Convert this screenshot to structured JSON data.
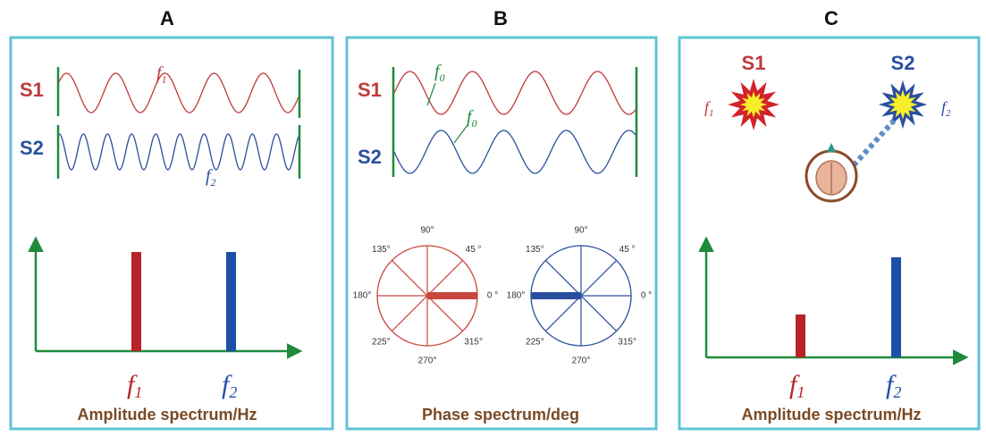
{
  "panels": [
    {
      "label": "A",
      "signals": [
        {
          "name": "S1",
          "freq": {
            "base": "f",
            "sub": "1"
          }
        },
        {
          "name": "S2",
          "freq": {
            "base": "f",
            "sub": "2"
          }
        }
      ],
      "spectrum_ticks": [
        {
          "base": "f",
          "sub": "1"
        },
        {
          "base": "f",
          "sub": "2"
        }
      ],
      "caption": "Amplitude spectrum/Hz"
    },
    {
      "label": "B",
      "signals": [
        {
          "name": "S1",
          "freq": {
            "base": "f",
            "sub": "0"
          }
        },
        {
          "name": "S2",
          "freq": {
            "base": "f",
            "sub": "0"
          }
        }
      ],
      "phase_labels": [
        "0 °",
        "45 °",
        "90°",
        "135°",
        "180°",
        "225°",
        "270°",
        "315°"
      ],
      "caption": "Phase spectrum/deg"
    },
    {
      "label": "C",
      "sources": [
        {
          "name": "S1",
          "freq": {
            "base": "f",
            "sub": "1"
          }
        },
        {
          "name": "S2",
          "freq": {
            "base": "f",
            "sub": "2"
          }
        }
      ],
      "spectrum_ticks": [
        {
          "base": "f",
          "sub": "1"
        },
        {
          "base": "f",
          "sub": "2"
        }
      ],
      "caption": "Amplitude spectrum/Hz"
    }
  ]
}
